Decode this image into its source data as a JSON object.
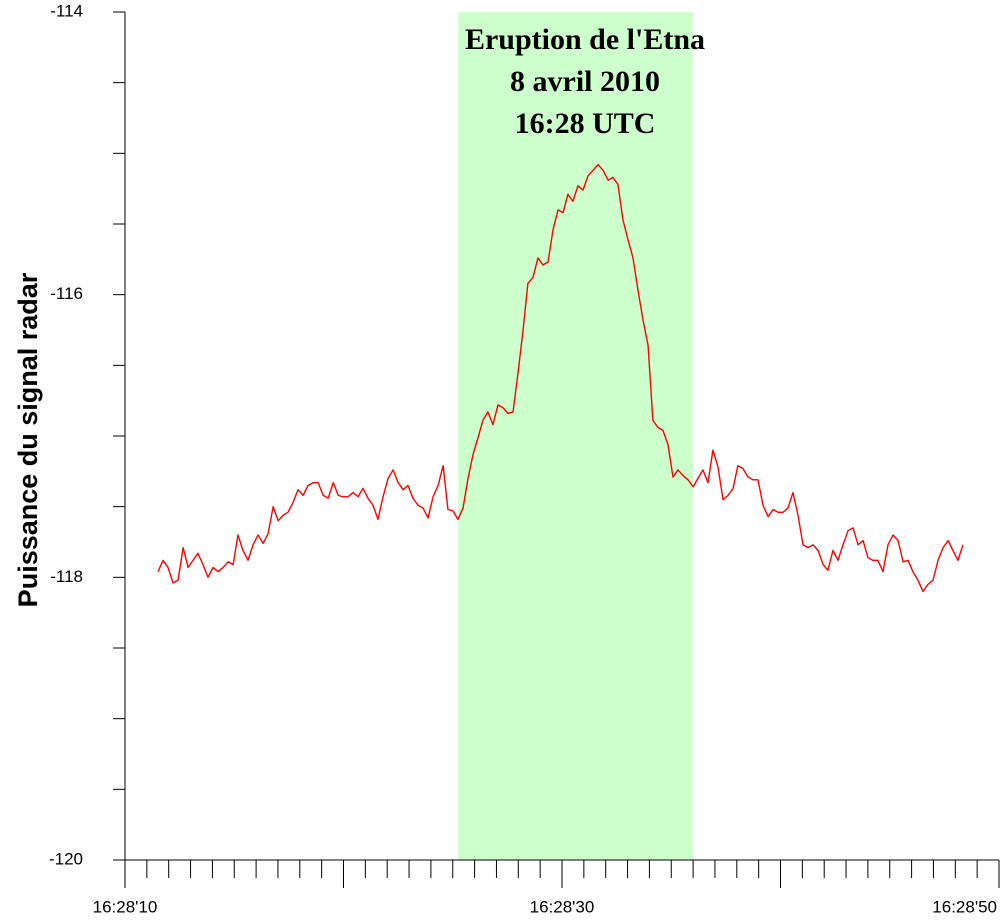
{
  "chart_data": {
    "type": "line",
    "y_label": "Puissance du signal radar",
    "annotation": [
      "Eruption de l'Etna",
      "8 avril 2010",
      "16:28 UTC"
    ],
    "highlight": [
      25.25,
      36
    ],
    "highlight_color": "#ccffcc",
    "xlim": [
      10,
      50
    ],
    "xticks": [
      {
        "value": 10,
        "label": "16:28'10"
      },
      {
        "value": 30,
        "label": "16:28'30"
      },
      {
        "value": 50,
        "label": "16:28'50"
      }
    ],
    "xminor": [
      11,
      12,
      13,
      14,
      15,
      16,
      17,
      18,
      19,
      20,
      21,
      22,
      23,
      24,
      25,
      26,
      27,
      28,
      29,
      31,
      32,
      33,
      34,
      35,
      36,
      37,
      38,
      39,
      40,
      41,
      42,
      43,
      44,
      45,
      46,
      47,
      48,
      49
    ],
    "ylim": [
      -120,
      -114
    ],
    "yticks": [
      -114,
      -116,
      -118,
      -120
    ],
    "yminor": [
      -114.5,
      -115,
      -115.5,
      -116.5,
      -117,
      -117.5,
      -118.5,
      -119,
      -119.5
    ],
    "grid": false,
    "series": [
      {
        "color": "#ff0000",
        "x": [
          11.51,
          11.74,
          11.97,
          12.2,
          12.43,
          12.66,
          12.89,
          13.11,
          13.34,
          13.57,
          13.8,
          14.03,
          14.26,
          14.49,
          14.72,
          14.95,
          15.17,
          15.4,
          15.63,
          15.86,
          16.09,
          16.32,
          16.55,
          16.78,
          17.01,
          17.24,
          17.46,
          17.69,
          17.92,
          18.15,
          18.38,
          18.61,
          18.84,
          19.07,
          19.3,
          19.53,
          19.76,
          19.98,
          20.21,
          20.44,
          20.67,
          20.89,
          21.12,
          21.35,
          21.58,
          21.81,
          22.04,
          22.27,
          22.5,
          22.73,
          22.95,
          23.18,
          23.41,
          23.64,
          23.87,
          24.1,
          24.33,
          24.56,
          24.78,
          25.01,
          25.24,
          25.47,
          25.7,
          25.93,
          26.16,
          26.38,
          26.61,
          26.84,
          27.07,
          27.3,
          27.53,
          27.76,
          27.99,
          28.22,
          28.44,
          28.67,
          28.9,
          29.13,
          29.36,
          29.59,
          29.82,
          30.05,
          30.27,
          30.5,
          30.73,
          30.96,
          31.19,
          31.42,
          31.65,
          31.88,
          32.11,
          32.33,
          32.56,
          32.79,
          33.02,
          33.25,
          33.48,
          33.71,
          33.94,
          34.16,
          34.39,
          34.62,
          34.85,
          35.08,
          35.31,
          35.54,
          35.77,
          36.0,
          36.22,
          36.45,
          36.68,
          36.91,
          37.14,
          37.37,
          37.6,
          37.83,
          38.05,
          38.28,
          38.51,
          38.74,
          38.97,
          39.2,
          39.43,
          39.66,
          39.89,
          40.11,
          40.34,
          40.57,
          40.8,
          41.03,
          41.26,
          41.49,
          41.72,
          41.95,
          42.17,
          42.4,
          42.63,
          42.86,
          43.09,
          43.32,
          43.55,
          43.78,
          44.0,
          44.23,
          44.46,
          44.69,
          44.92,
          45.15,
          45.38,
          45.61,
          45.84,
          46.06,
          46.29,
          46.52,
          46.75,
          46.98,
          47.21,
          47.44,
          47.67,
          47.89,
          48.12,
          48.35
        ],
        "values": [
          -117.96,
          -117.88,
          -117.93,
          -118.04,
          -118.02,
          -117.79,
          -117.93,
          -117.88,
          -117.83,
          -117.91,
          -118.0,
          -117.93,
          -117.96,
          -117.93,
          -117.89,
          -117.91,
          -117.7,
          -117.81,
          -117.88,
          -117.77,
          -117.7,
          -117.76,
          -117.69,
          -117.5,
          -117.6,
          -117.56,
          -117.54,
          -117.47,
          -117.38,
          -117.42,
          -117.35,
          -117.33,
          -117.33,
          -117.42,
          -117.44,
          -117.33,
          -117.42,
          -117.43,
          -117.43,
          -117.4,
          -117.43,
          -117.37,
          -117.44,
          -117.49,
          -117.59,
          -117.43,
          -117.3,
          -117.24,
          -117.33,
          -117.38,
          -117.35,
          -117.44,
          -117.49,
          -117.51,
          -117.58,
          -117.43,
          -117.35,
          -117.21,
          -117.52,
          -117.53,
          -117.59,
          -117.51,
          -117.3,
          -117.13,
          -117.01,
          -116.89,
          -116.83,
          -116.92,
          -116.78,
          -116.8,
          -116.84,
          -116.83,
          -116.55,
          -116.25,
          -115.92,
          -115.88,
          -115.74,
          -115.79,
          -115.77,
          -115.54,
          -115.4,
          -115.42,
          -115.29,
          -115.34,
          -115.23,
          -115.26,
          -115.16,
          -115.12,
          -115.08,
          -115.12,
          -115.19,
          -115.17,
          -115.22,
          -115.47,
          -115.61,
          -115.74,
          -115.97,
          -116.18,
          -116.36,
          -116.89,
          -116.94,
          -116.96,
          -117.06,
          -117.29,
          -117.24,
          -117.28,
          -117.31,
          -117.36,
          -117.3,
          -117.24,
          -117.33,
          -117.1,
          -117.22,
          -117.45,
          -117.42,
          -117.37,
          -117.21,
          -117.23,
          -117.29,
          -117.31,
          -117.31,
          -117.49,
          -117.57,
          -117.52,
          -117.54,
          -117.54,
          -117.51,
          -117.4,
          -117.56,
          -117.77,
          -117.79,
          -117.77,
          -117.81,
          -117.91,
          -117.95,
          -117.81,
          -117.88,
          -117.77,
          -117.67,
          -117.65,
          -117.77,
          -117.74,
          -117.86,
          -117.88,
          -117.88,
          -117.96,
          -117.77,
          -117.7,
          -117.74,
          -117.89,
          -117.88,
          -117.96,
          -118.02,
          -118.1,
          -118.05,
          -118.02,
          -117.88,
          -117.79,
          -117.74,
          -117.81,
          -117.88,
          -117.77
        ]
      }
    ]
  }
}
